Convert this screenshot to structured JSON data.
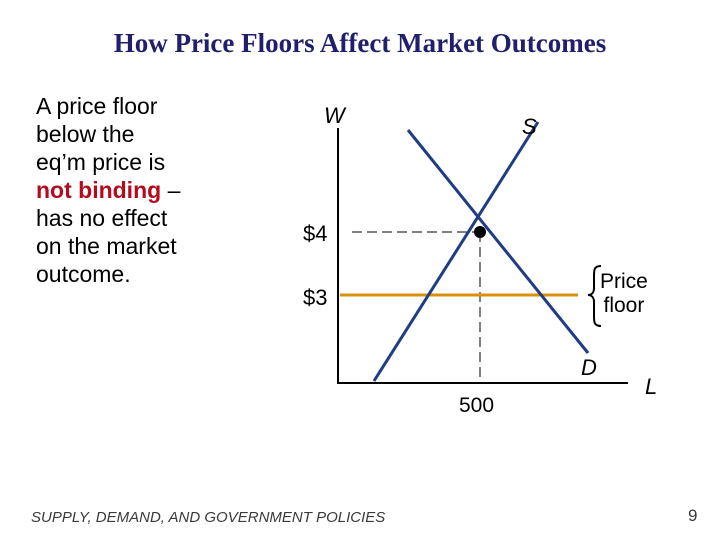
{
  "slide": {
    "title": "How Price Floors Affect Market Outcomes",
    "body": {
      "line1": "A price floor",
      "line2": "below the",
      "line3": "eq’m price is",
      "highlight": "not binding",
      "line4_rest": " –",
      "line5": "has no effect",
      "line6": "on the market",
      "line7": "outcome."
    },
    "footer": "SUPPLY, DEMAND, AND GOVERNMENT POLICIES",
    "page_number": "9",
    "colors": {
      "title": "#1f1f6b",
      "highlight": "#b40c1e",
      "curves": "#1f3d82",
      "price_floor": "#d9900f"
    }
  },
  "graph": {
    "y_axis_label": "W",
    "x_axis_label": "L",
    "supply_label": "S",
    "demand_label": "D",
    "price_high_label": "$4",
    "price_low_label": "$3",
    "quantity_label": "500",
    "floor_label_line1": "Price",
    "floor_label_line2": "floor"
  }
}
